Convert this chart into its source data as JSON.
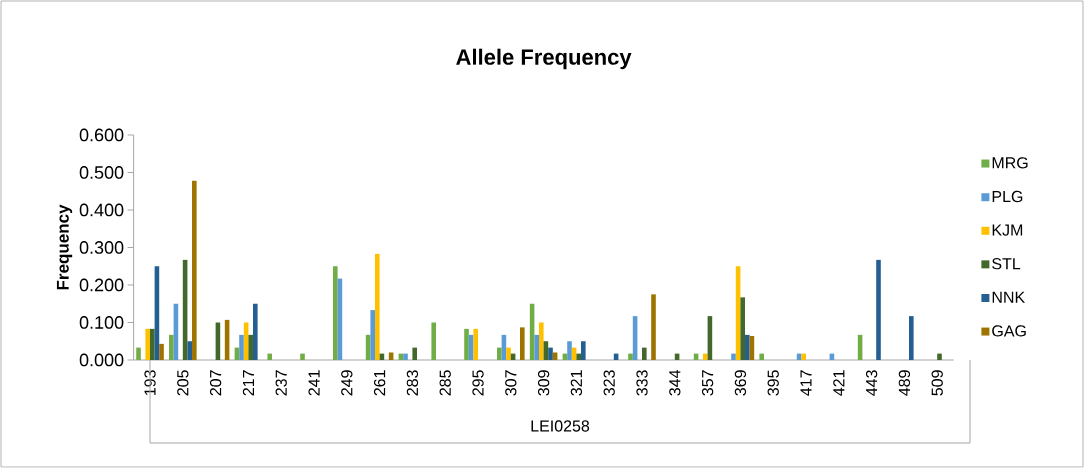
{
  "chart_data": {
    "type": "bar",
    "title": "Allele Frequency",
    "xlabel": "LEI0258",
    "ylabel": "Frequency",
    "categories": [
      "193",
      "205",
      "207",
      "217",
      "237",
      "241",
      "249",
      "261",
      "283",
      "285",
      "295",
      "307",
      "309",
      "321",
      "323",
      "333",
      "344",
      "357",
      "369",
      "395",
      "417",
      "421",
      "443",
      "489",
      "509"
    ],
    "ylim": [
      0,
      0.6
    ],
    "yticks": [
      {
        "value": 0,
        "label": "0.000"
      },
      {
        "value": 0.1,
        "label": "0.100"
      },
      {
        "value": 0.2,
        "label": "0.200"
      },
      {
        "value": 0.3,
        "label": "0.300"
      },
      {
        "value": 0.4,
        "label": "0.400"
      },
      {
        "value": 0.5,
        "label": "0.500"
      },
      {
        "value": 0.6,
        "label": "0.600"
      }
    ],
    "legend": "right",
    "series": [
      {
        "name": "MRG",
        "color": "#70ad47",
        "values": [
          0.033,
          0.067,
          null,
          0.033,
          0.017,
          0.017,
          0.25,
          0.067,
          0.017,
          0.1,
          0.083,
          0.033,
          0.15,
          0.017,
          null,
          0.017,
          null,
          0.017,
          null,
          0.017,
          null,
          null,
          0.067,
          null,
          null
        ]
      },
      {
        "name": "PLG",
        "color": "#5b9bd5",
        "values": [
          null,
          0.15,
          null,
          0.067,
          null,
          null,
          0.217,
          0.133,
          0.017,
          null,
          0.067,
          0.067,
          0.067,
          0.05,
          null,
          0.117,
          null,
          null,
          0.017,
          null,
          0.017,
          0.017,
          null,
          null,
          null
        ]
      },
      {
        "name": "KJM",
        "color": "#ffc000",
        "values": [
          0.083,
          null,
          null,
          0.1,
          null,
          null,
          null,
          0.283,
          null,
          null,
          0.083,
          0.033,
          0.1,
          0.033,
          null,
          null,
          null,
          0.017,
          0.25,
          null,
          0.017,
          null,
          null,
          null,
          null
        ]
      },
      {
        "name": "STL",
        "color": "#43682b",
        "values": [
          0.083,
          0.267,
          0.1,
          0.067,
          null,
          null,
          null,
          0.017,
          0.033,
          null,
          null,
          0.017,
          0.05,
          0.017,
          null,
          0.033,
          0.017,
          0.117,
          0.167,
          null,
          null,
          null,
          null,
          null,
          0.017
        ]
      },
      {
        "name": "NNK",
        "color": "#255e91",
        "values": [
          0.25,
          0.05,
          null,
          0.15,
          null,
          null,
          null,
          null,
          null,
          null,
          null,
          null,
          0.033,
          0.05,
          0.017,
          null,
          null,
          null,
          0.067,
          null,
          null,
          null,
          0.267,
          0.117,
          null
        ]
      },
      {
        "name": "GAG",
        "color": "#9e7400",
        "values": [
          0.043,
          0.478,
          0.107,
          null,
          null,
          null,
          null,
          0.02,
          null,
          null,
          null,
          0.087,
          0.02,
          null,
          null,
          0.175,
          null,
          null,
          0.064,
          null,
          null,
          null,
          null,
          null,
          null
        ]
      }
    ]
  }
}
